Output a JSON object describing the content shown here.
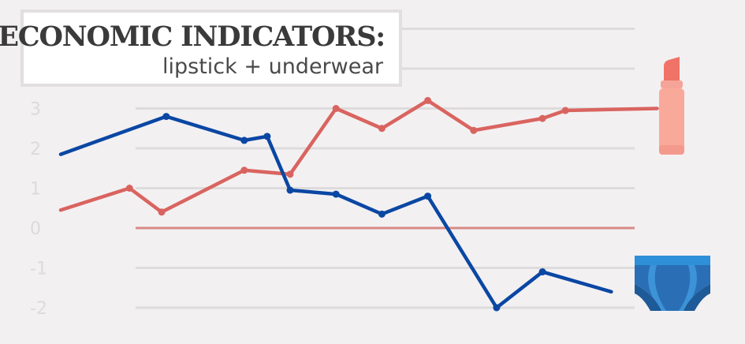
{
  "title": {
    "main": "ECONOMIC INDICATORS:",
    "sub": "lipstick + underwear"
  },
  "colors": {
    "background": "#f3f0f2",
    "grid": "#dddbdc",
    "zero_line": "#d98a86",
    "lipstick_series": "#d9645f",
    "underwear_series": "#0a47a3"
  },
  "icons": {
    "lipstick": "lipstick-icon",
    "underwear": "underwear-icon"
  },
  "chart_data": {
    "type": "line",
    "title": "ECONOMIC INDICATORS:",
    "subtitle": "lipstick + underwear",
    "xlabel": "",
    "ylabel": "",
    "ylim": [
      -2.5,
      5
    ],
    "yticks": [
      3,
      2,
      1,
      0,
      -1,
      -2
    ],
    "grid": true,
    "legend": "none",
    "x": [
      0,
      1.5,
      2.2,
      4,
      5,
      6,
      7,
      8,
      9,
      10.5,
      11,
      13
    ],
    "series": [
      {
        "name": "",
        "color": "#d9645f",
        "x": [
          0,
          1.5,
          2.2,
          4,
          5,
          6,
          7,
          8,
          9,
          10.5,
          11,
          13
        ],
        "values": [
          0.45,
          1.0,
          0.4,
          1.45,
          1.35,
          3.0,
          2.5,
          3.2,
          2.45,
          2.75,
          2.95,
          3.0
        ]
      },
      {
        "name": "",
        "color": "#0a47a3",
        "x": [
          0,
          2.3,
          4,
          4.5,
          5,
          6,
          7,
          8,
          9.5,
          10.5,
          12
        ],
        "values": [
          1.85,
          2.8,
          2.2,
          2.3,
          0.95,
          0.85,
          0.35,
          0.8,
          -2.0,
          -1.1,
          -1.6
        ]
      }
    ]
  }
}
